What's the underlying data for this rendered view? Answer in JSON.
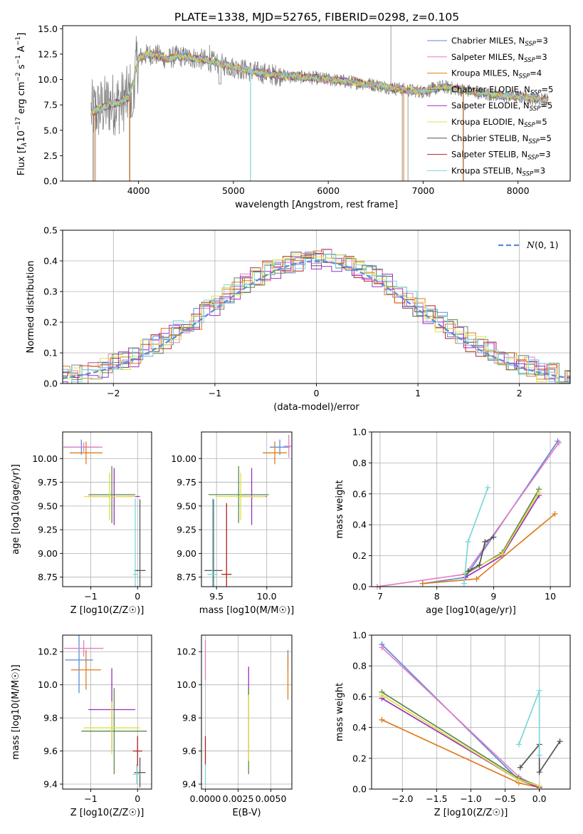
{
  "figure_title": "PLATE=1338, MJD=52765, FIBERID=0298, z=0.105",
  "series_colors": [
    "#5b8bd9",
    "#e67ec4",
    "#e07b1e",
    "#5e8a4e",
    "#9b30c0",
    "#dfe040",
    "#555555",
    "#b22222",
    "#7dd6dc"
  ],
  "chart_data": [
    {
      "id": "spectrum",
      "type": "line",
      "title": "PLATE=1338, MJD=52765, FIBERID=0298, z=0.105",
      "xlabel": "wavelength [Angstrom, rest frame]",
      "ylabel_parts": [
        "Flux [f",
        "λ",
        "10",
        "−17",
        " erg cm",
        "−2",
        " s",
        "−1",
        " A",
        "−1",
        "]"
      ],
      "xlim": [
        3200,
        8550
      ],
      "ylim": [
        0,
        15.3
      ],
      "xticks": [
        4000,
        5000,
        6000,
        7000,
        8000
      ],
      "yticks": [
        0.0,
        2.5,
        5.0,
        7.5,
        10.0,
        12.5,
        15.0
      ],
      "ytick_labels": [
        "0.0",
        "2.5",
        "5.0",
        "7.5",
        "10.0",
        "12.5",
        "15.0"
      ],
      "data_color": "#808080",
      "continuum": [
        [
          3500,
          6.8
        ],
        [
          3600,
          7.1
        ],
        [
          3700,
          7.6
        ],
        [
          3800,
          7.7
        ],
        [
          3900,
          8.3
        ],
        [
          3950,
          10.0
        ],
        [
          4000,
          12.1
        ],
        [
          4100,
          12.5
        ],
        [
          4200,
          12.4
        ],
        [
          4300,
          12.0
        ],
        [
          4400,
          12.3
        ],
        [
          4600,
          12.1
        ],
        [
          4800,
          11.7
        ],
        [
          5000,
          11.2
        ],
        [
          5200,
          10.8
        ],
        [
          5400,
          10.5
        ],
        [
          5600,
          10.3
        ],
        [
          5800,
          10.2
        ],
        [
          6000,
          10.0
        ],
        [
          6200,
          9.8
        ],
        [
          6400,
          9.6
        ],
        [
          6600,
          9.3
        ],
        [
          6800,
          9.0
        ],
        [
          7000,
          8.8
        ],
        [
          7200,
          9.3
        ],
        [
          7400,
          9.0
        ],
        [
          7600,
          8.7
        ],
        [
          7800,
          8.4
        ],
        [
          8000,
          8.3
        ],
        [
          8200,
          8.1
        ],
        [
          8320,
          8.0
        ]
      ],
      "legend": [
        {
          "main": "Chabrier MILES, N",
          "sub": "SSP",
          "suffix": "=3"
        },
        {
          "main": "Salpeter MILES, N",
          "sub": "SSP",
          "suffix": "=3"
        },
        {
          "main": "Kroupa MILES, N",
          "sub": "SSP",
          "suffix": "=4"
        },
        {
          "main": "Chabrier ELODIE, N",
          "sub": "SSP",
          "suffix": "=5"
        },
        {
          "main": "Salpeter ELODIE, N",
          "sub": "SSP",
          "suffix": "=5"
        },
        {
          "main": "Kroupa ELODIE, N",
          "sub": "SSP",
          "suffix": "=5"
        },
        {
          "main": "Chabrier STELIB, N",
          "sub": "SSP",
          "suffix": "=5"
        },
        {
          "main": "Salpeter STELIB, N",
          "sub": "SSP",
          "suffix": "=3"
        },
        {
          "main": "Kroupa STELIB, N",
          "sub": "SSP",
          "suffix": "=3"
        }
      ],
      "legend_placement": "top-right",
      "grid": false
    },
    {
      "id": "residuals",
      "type": "step",
      "xlabel": "(data-model)/error",
      "ylabel": "Normed distribution",
      "xlim": [
        -2.5,
        2.5
      ],
      "ylim": [
        0,
        0.5
      ],
      "xticks": [
        -2,
        -1,
        0,
        1,
        2
      ],
      "xtick_labels": [
        "−2",
        "−1",
        "0",
        "1",
        "2"
      ],
      "yticks": [
        0.0,
        0.1,
        0.2,
        0.3,
        0.4,
        0.5
      ],
      "ytick_labels": [
        "0.0",
        "0.1",
        "0.2",
        "0.3",
        "0.4",
        "0.5"
      ],
      "legend_label": "N(0,1)",
      "legend_placement": "top-right",
      "grid": true,
      "bin_width": 0.1,
      "reference_curve": "standard normal pdf"
    },
    {
      "id": "age-vs-Z",
      "type": "errorbar",
      "xlabel": "Z [log10(Z/Z☉)]",
      "ylabel": "age [log10(age/yr)]",
      "xlim": [
        -1.6,
        0.3
      ],
      "ylim": [
        8.65,
        10.28
      ],
      "xticks": [
        -1,
        0
      ],
      "xtick_labels": [
        "−1",
        "0"
      ],
      "yticks": [
        8.75,
        9.0,
        9.25,
        9.5,
        9.75,
        10.0
      ],
      "ytick_labels": [
        "8.75",
        "9.00",
        "9.25",
        "9.50",
        "9.75",
        "10.00"
      ],
      "grid": true,
      "points": [
        {
          "x": -1.2,
          "y": 10.12,
          "xerr": 0.38,
          "yerr": 0.08,
          "c": 0
        },
        {
          "x": -1.15,
          "y": 10.12,
          "xerr": 0.4,
          "yerr": 0.05,
          "c": 1
        },
        {
          "x": -1.1,
          "y": 10.06,
          "xerr": 0.35,
          "yerr": 0.12,
          "c": 2
        },
        {
          "x": -0.55,
          "y": 9.62,
          "xerr": 0.5,
          "yerr": 0.3,
          "c": 3
        },
        {
          "x": -0.5,
          "y": 9.6,
          "xerr": 0.55,
          "yerr": 0.3,
          "c": 4
        },
        {
          "x": -0.6,
          "y": 9.6,
          "xerr": 0.55,
          "yerr": 0.25,
          "c": 5
        },
        {
          "x": 0.05,
          "y": 8.82,
          "xerr": 0.12,
          "yerr": 0.75,
          "c": 6
        },
        {
          "x": -0.05,
          "y": 8.78,
          "xerr": 0.05,
          "yerr": 0.8,
          "c": 8
        }
      ]
    },
    {
      "id": "age-vs-mass",
      "type": "errorbar",
      "xlabel": "mass [log10(M/M☉)]",
      "xlim": [
        9.35,
        10.25
      ],
      "ylim": [
        8.65,
        10.28
      ],
      "xticks": [
        9.5,
        10.0
      ],
      "xtick_labels": [
        "9.5",
        "10.0"
      ],
      "yticks": [
        8.75,
        9.0,
        9.25,
        9.5,
        9.75,
        10.0
      ],
      "ytick_labels": [
        "8.75",
        "9.00",
        "9.25",
        "9.50",
        "9.75",
        "10.00"
      ],
      "grid": true,
      "points": [
        {
          "x": 10.13,
          "y": 10.12,
          "xerr": 0.1,
          "yerr": 0.08,
          "c": 0
        },
        {
          "x": 10.22,
          "y": 10.13,
          "xerr": 0.05,
          "yerr": 0.12,
          "c": 1
        },
        {
          "x": 10.08,
          "y": 10.06,
          "xerr": 0.12,
          "yerr": 0.12,
          "c": 2
        },
        {
          "x": 9.72,
          "y": 9.62,
          "xerr": 0.3,
          "yerr": 0.3,
          "c": 3
        },
        {
          "x": 9.85,
          "y": 9.6,
          "xerr": 0.15,
          "yerr": 0.3,
          "c": 4
        },
        {
          "x": 9.74,
          "y": 9.6,
          "xerr": 0.25,
          "yerr": 0.25,
          "c": 5
        },
        {
          "x": 9.47,
          "y": 8.82,
          "xerr": 0.09,
          "yerr": 0.75,
          "c": 6
        },
        {
          "x": 9.6,
          "y": 8.78,
          "xerr": 0.05,
          "yerr": 0.75,
          "c": 7
        },
        {
          "x": 9.46,
          "y": 8.78,
          "xerr": 0.05,
          "yerr": 0.8,
          "c": 8
        }
      ]
    },
    {
      "id": "weight-vs-age",
      "type": "line",
      "xlabel": "age [log10(age/yr)]",
      "ylabel": "mass weight",
      "xlim": [
        6.85,
        10.35
      ],
      "ylim": [
        0,
        1.0
      ],
      "xticks": [
        7,
        8,
        9,
        10
      ],
      "xtick_labels": [
        "7",
        "8",
        "9",
        "10"
      ],
      "yticks": [
        0.0,
        0.2,
        0.4,
        0.6,
        0.8,
        1.0
      ],
      "ytick_labels": [
        "0.0",
        "0.2",
        "0.4",
        "0.6",
        "0.8",
        "1.0"
      ],
      "grid": true,
      "series": [
        {
          "c": 0,
          "x": [
            7.75,
            8.5,
            10.13
          ],
          "y": [
            0.02,
            0.06,
            0.94
          ]
        },
        {
          "c": 1,
          "x": [
            6.95,
            8.5,
            10.15
          ],
          "y": [
            0.0,
            0.08,
            0.93
          ]
        },
        {
          "c": 2,
          "x": [
            7.75,
            8.7,
            10.08
          ],
          "y": [
            0.02,
            0.05,
            0.47
          ]
        },
        {
          "c": 3,
          "x": [
            8.5,
            9.15,
            9.8
          ],
          "y": [
            0.08,
            0.22,
            0.63
          ]
        },
        {
          "c": 4,
          "x": [
            8.5,
            9.15,
            9.8
          ],
          "y": [
            0.06,
            0.2,
            0.59
          ]
        },
        {
          "c": 5,
          "x": [
            8.5,
            9.15,
            9.8
          ],
          "y": [
            0.09,
            0.21,
            0.61
          ]
        },
        {
          "c": 6,
          "x": [
            8.55,
            8.75,
            8.85,
            9.0
          ],
          "y": [
            0.1,
            0.14,
            0.29,
            0.32
          ]
        },
        {
          "c": 8,
          "x": [
            8.48,
            8.55,
            8.9
          ],
          "y": [
            0.02,
            0.29,
            0.64
          ]
        }
      ]
    },
    {
      "id": "mass-vs-Z",
      "type": "errorbar",
      "xlabel": "Z [log10(Z/Z☉)]",
      "ylabel": "mass [log10(M/M☉)]",
      "xlim": [
        -1.6,
        0.3
      ],
      "ylim": [
        9.37,
        10.3
      ],
      "xticks": [
        -1,
        0
      ],
      "xtick_labels": [
        "−1",
        "0"
      ],
      "yticks": [
        9.4,
        9.6,
        9.8,
        10.0,
        10.2
      ],
      "ytick_labels": [
        "9.4",
        "9.6",
        "9.8",
        "10.0",
        "10.2"
      ],
      "grid": true,
      "points": [
        {
          "x": -1.25,
          "y": 10.15,
          "xerr": 0.3,
          "yerr": 0.2,
          "c": 0
        },
        {
          "x": -1.15,
          "y": 10.22,
          "xerr": 0.42,
          "yerr": 0.05,
          "c": 1
        },
        {
          "x": -1.1,
          "y": 10.09,
          "xerr": 0.32,
          "yerr": 0.12,
          "c": 2
        },
        {
          "x": -0.5,
          "y": 9.72,
          "xerr": 0.7,
          "yerr": 0.26,
          "c": 3
        },
        {
          "x": -0.55,
          "y": 9.85,
          "xerr": 0.5,
          "yerr": 0.25,
          "c": 4
        },
        {
          "x": -0.55,
          "y": 9.74,
          "xerr": 0.6,
          "yerr": 0.16,
          "c": 5
        },
        {
          "x": 0.05,
          "y": 9.47,
          "xerr": 0.12,
          "yerr": 0.09,
          "c": 6
        },
        {
          "x": 0.0,
          "y": 9.6,
          "xerr": 0.1,
          "yerr": 0.09,
          "c": 7
        },
        {
          "x": -0.02,
          "y": 9.46,
          "xerr": 0.08,
          "yerr": 0.06,
          "c": 8
        }
      ]
    },
    {
      "id": "mass-vs-ebv",
      "type": "errorbar",
      "xlabel": "E(B-V)",
      "xlim": [
        -0.0003,
        0.0066
      ],
      "ylim": [
        9.37,
        10.3
      ],
      "xticks": [
        0.0,
        0.0025,
        0.005
      ],
      "xtick_labels": [
        "0.0000",
        "0.0025",
        "0.0050"
      ],
      "yticks": [
        9.4,
        9.6,
        9.8,
        10.0,
        10.2
      ],
      "ytick_labels": [
        "9.4",
        "9.6",
        "9.8",
        "10.0",
        "10.2"
      ],
      "grid": true,
      "points": [
        {
          "x": 0.0,
          "y": 10.15,
          "xerr": 0.0,
          "yerr": 0.12,
          "c": 1
        },
        {
          "x": 0.0,
          "y": 9.6,
          "xerr": 0.0,
          "yerr": 0.09,
          "c": 7
        },
        {
          "x": 0.0,
          "y": 9.46,
          "xerr": 0.0,
          "yerr": 0.06,
          "c": 8
        },
        {
          "x": 0.0033,
          "y": 9.85,
          "xerr": 0.0,
          "yerr": 0.26,
          "c": 4
        },
        {
          "x": 0.0033,
          "y": 9.72,
          "xerr": 0.0,
          "yerr": 0.26,
          "c": 3
        },
        {
          "x": 0.0033,
          "y": 9.74,
          "xerr": 0.0,
          "yerr": 0.2,
          "c": 5
        },
        {
          "x": 0.0063,
          "y": 10.15,
          "xerr": 0.0,
          "yerr": 0.06,
          "c": 0
        },
        {
          "x": 0.0063,
          "y": 10.05,
          "xerr": 0.0,
          "yerr": 0.14,
          "c": 2
        }
      ]
    },
    {
      "id": "weight-vs-Z",
      "type": "line",
      "xlabel": "Z [log10(Z/Z☉)]",
      "ylabel": "mass weight",
      "xlim": [
        -2.45,
        0.45
      ],
      "ylim": [
        0,
        1.0
      ],
      "xticks": [
        -2.0,
        -1.5,
        -1.0,
        -0.5,
        0.0
      ],
      "xtick_labels": [
        "−2.0",
        "−1.5",
        "−1.0",
        "−0.5",
        "0.0"
      ],
      "yticks": [
        0.0,
        0.2,
        0.4,
        0.6,
        0.8,
        1.0
      ],
      "ytick_labels": [
        "0.0",
        "0.2",
        "0.4",
        "0.6",
        "0.8",
        "1.0"
      ],
      "grid": true,
      "series": [
        {
          "c": 0,
          "x": [
            -2.3,
            -0.3,
            0.0
          ],
          "y": [
            0.94,
            0.06,
            0.02
          ]
        },
        {
          "c": 1,
          "x": [
            -2.3,
            -0.3,
            0.0
          ],
          "y": [
            0.92,
            0.08,
            0.01
          ]
        },
        {
          "c": 2,
          "x": [
            -2.3,
            -0.3,
            0.0
          ],
          "y": [
            0.45,
            0.04,
            0.01
          ]
        },
        {
          "c": 3,
          "x": [
            -2.3,
            -0.3,
            0.0
          ],
          "y": [
            0.63,
            0.07,
            0.02
          ]
        },
        {
          "c": 4,
          "x": [
            -2.3,
            -0.3,
            0.0
          ],
          "y": [
            0.59,
            0.06,
            0.01
          ]
        },
        {
          "c": 5,
          "x": [
            -2.3,
            -0.3,
            0.0
          ],
          "y": [
            0.61,
            0.06,
            0.02
          ]
        },
        {
          "c": 6,
          "x": [
            -0.28,
            0.0,
            0.0,
            0.3
          ],
          "y": [
            0.14,
            0.29,
            0.11,
            0.31
          ]
        },
        {
          "c": 8,
          "x": [
            -0.3,
            0.0,
            0.0
          ],
          "y": [
            0.29,
            0.64,
            0.22
          ]
        }
      ]
    }
  ]
}
